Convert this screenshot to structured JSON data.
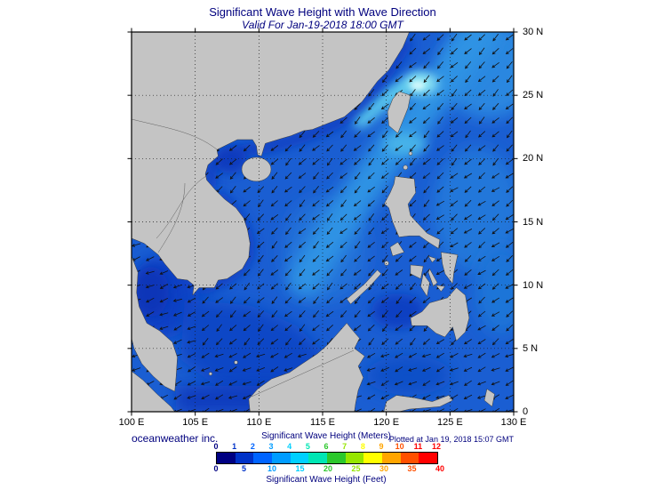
{
  "title": "Significant Wave Height with Wave Direction",
  "subtitle": "Valid For Jan-19-2018 18:00 GMT",
  "credit": "oceanweather inc.",
  "plotted": "Plotted at Jan 19, 2018 15:07 GMT",
  "map": {
    "lon_ticks": [
      "100 E",
      "105 E",
      "110 E",
      "115 E",
      "120 E",
      "125 E",
      "130 E"
    ],
    "lat_ticks_top_to_bottom": [
      "30 N",
      "25 N",
      "20 N",
      "15 N",
      "10 N",
      "5 N",
      "0"
    ],
    "lon_range_deg": [
      100,
      130
    ],
    "lat_range_deg": [
      0,
      30
    ],
    "grid_step_deg": 5,
    "land_color": "#c4c4c4",
    "sea_base_color": "#1a5ed2",
    "high_wave_color": "#9feef6",
    "low_wave_color": "#0b3abd"
  },
  "arrows": {
    "direction_compass_deg_toward": 225,
    "jitter_deg": 9
  },
  "colorbar": {
    "meters_label": "Significant Wave Height (Meters)",
    "feet_label": "Significant Wave Height (Feet)",
    "meters_ticks": [
      0,
      1,
      2,
      3,
      4,
      5,
      6,
      7,
      8,
      9,
      10,
      11,
      12
    ],
    "feet_ticks": [
      0,
      5,
      10,
      15,
      20,
      25,
      30,
      35,
      40
    ],
    "feet_per_meter": 3.28084,
    "segment_colors": [
      "#000082",
      "#0032c8",
      "#0064ff",
      "#009cff",
      "#00d0ff",
      "#00e6b4",
      "#2cc82c",
      "#96e600",
      "#ffff00",
      "#ffa500",
      "#ff5000",
      "#ff0000"
    ]
  }
}
